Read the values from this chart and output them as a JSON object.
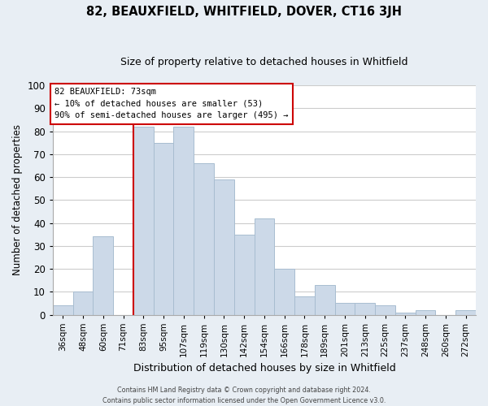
{
  "title": "82, BEAUXFIELD, WHITFIELD, DOVER, CT16 3JH",
  "subtitle": "Size of property relative to detached houses in Whitfield",
  "xlabel": "Distribution of detached houses by size in Whitfield",
  "ylabel": "Number of detached properties",
  "footer_lines": [
    "Contains HM Land Registry data © Crown copyright and database right 2024.",
    "Contains public sector information licensed under the Open Government Licence v3.0."
  ],
  "bar_labels": [
    "36sqm",
    "48sqm",
    "60sqm",
    "71sqm",
    "83sqm",
    "95sqm",
    "107sqm",
    "119sqm",
    "130sqm",
    "142sqm",
    "154sqm",
    "166sqm",
    "178sqm",
    "189sqm",
    "201sqm",
    "213sqm",
    "225sqm",
    "237sqm",
    "248sqm",
    "260sqm",
    "272sqm"
  ],
  "bar_heights": [
    4,
    10,
    34,
    0,
    82,
    75,
    82,
    66,
    59,
    35,
    42,
    20,
    8,
    13,
    5,
    5,
    4,
    1,
    2,
    0,
    2
  ],
  "bar_color": "#ccd9e8",
  "bar_edge_color": "#a8bdd0",
  "vline_color": "#cc0000",
  "annotation_title": "82 BEAUXFIELD: 73sqm",
  "annotation_line1": "← 10% of detached houses are smaller (53)",
  "annotation_line2": "90% of semi-detached houses are larger (495) →",
  "annotation_box_color": "#ffffff",
  "annotation_box_edge_color": "#cc0000",
  "ylim": [
    0,
    100
  ],
  "yticks": [
    0,
    10,
    20,
    30,
    40,
    50,
    60,
    70,
    80,
    90,
    100
  ],
  "bg_color": "#e8eef4",
  "plot_bg_color": "#ffffff",
  "grid_color": "#cccccc",
  "title_fontsize": 10.5,
  "subtitle_fontsize": 9
}
